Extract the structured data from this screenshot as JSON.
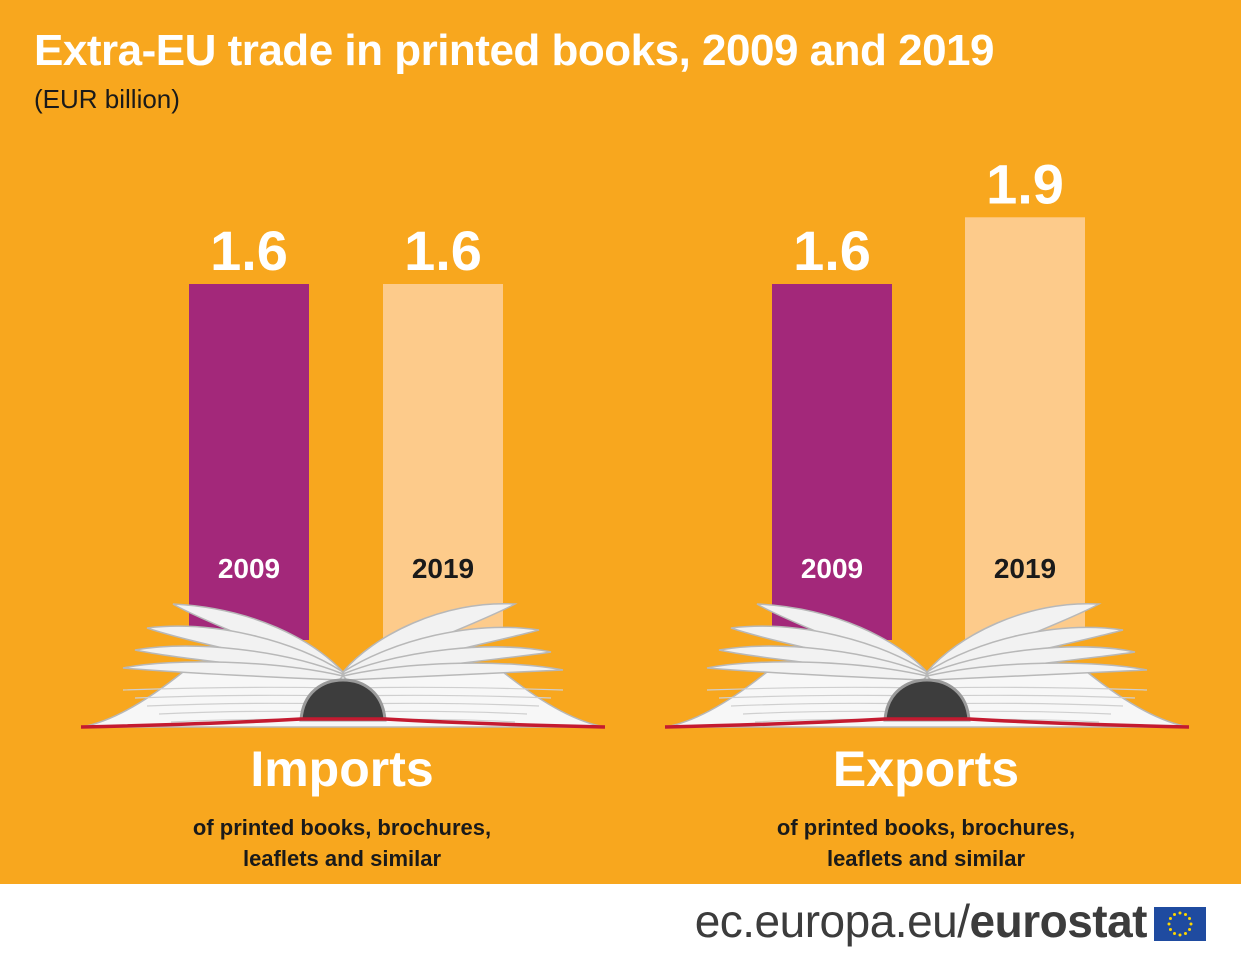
{
  "chart_data": {
    "type": "bar",
    "title": "Extra-EU trade in printed books, 2009 and 2019",
    "subtitle": "(EUR billion)",
    "unit": "EUR billion",
    "groups": [
      {
        "name": "Imports",
        "description": [
          "of printed books, brochures,",
          "leaflets and similar"
        ],
        "categories": [
          "2009",
          "2019"
        ],
        "values": [
          1.6,
          1.6
        ],
        "value_labels": [
          "1.6",
          "1.6"
        ]
      },
      {
        "name": "Exports",
        "description": [
          "of printed books, brochures,",
          "leaflets and similar"
        ],
        "categories": [
          "2009",
          "2019"
        ],
        "values": [
          1.6,
          1.9
        ],
        "value_labels": [
          "1.6",
          "1.9"
        ]
      }
    ],
    "series_colors": {
      "2009": "#A3287A",
      "2019": "#FDCB8B"
    },
    "year_label_colors": {
      "2009": "#ffffff",
      "2019": "#1a1a1a"
    }
  },
  "colors": {
    "background": "#F8A71E",
    "book_spine": "#3D3D3D",
    "book_edge": "#C41A30"
  },
  "footer": {
    "url_prefix": "ec.europa.eu/",
    "brand": "eurostat"
  }
}
